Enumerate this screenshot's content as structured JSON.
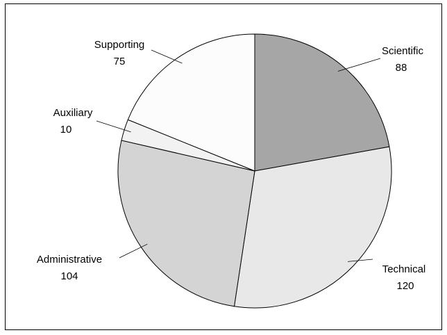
{
  "chart_data": {
    "type": "pie",
    "title": "",
    "categories": [
      "Scientific",
      "Technical",
      "Administrative",
      "Auxiliary",
      "Supporting"
    ],
    "values": [
      88,
      120,
      104,
      10,
      75
    ],
    "value_labels": [
      "88",
      "120",
      "104",
      "10",
      "75"
    ],
    "colors": [
      "#a6a6a6",
      "#e8e8e8",
      "#d4d4d4",
      "#f2f2f2",
      "#fcfcfc"
    ],
    "start": "12 o'clock",
    "direction": "clockwise",
    "legend": "none",
    "labels": "outside with leader lines"
  }
}
